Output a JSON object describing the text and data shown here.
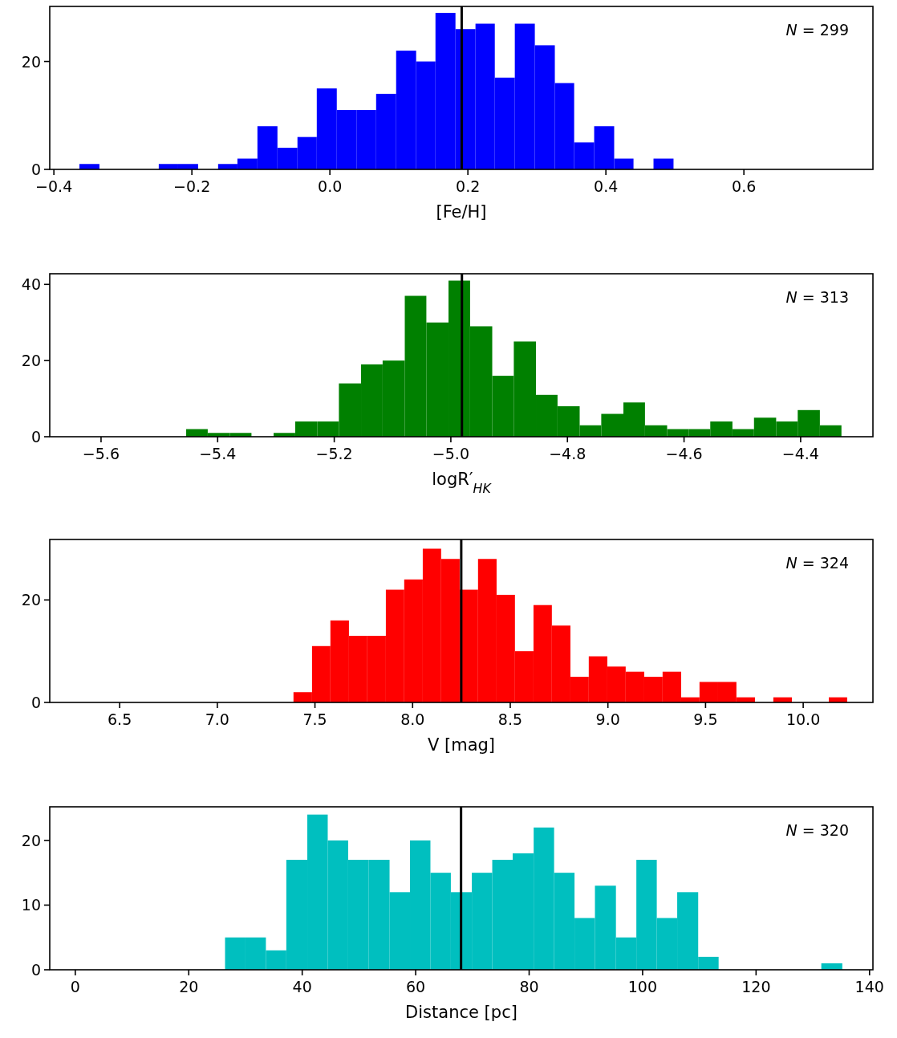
{
  "chart_data": [
    {
      "type": "histogram",
      "color": "#0000ff",
      "xlabel": "[Fe/H]",
      "annotations": [
        "N = 299"
      ],
      "bins": [
        -0.363,
        -0.334,
        -0.248,
        -0.22,
        -0.191,
        -0.162,
        -0.134,
        -0.105,
        -0.076,
        -0.047,
        -0.019,
        0.01,
        0.039,
        0.067,
        0.096,
        0.125,
        0.153,
        0.182,
        0.211,
        0.239,
        0.268,
        0.297,
        0.326,
        0.354,
        0.383,
        0.412,
        0.44,
        0.469,
        0.498
      ],
      "values": [
        1,
        0,
        1,
        1,
        0,
        1,
        2,
        8,
        4,
        6,
        15,
        11,
        11,
        14,
        22,
        20,
        29,
        26,
        27,
        17,
        27,
        23,
        16,
        5,
        8,
        2,
        0,
        2
      ],
      "xlim": [
        -0.406,
        0.787
      ],
      "ylim": [
        0,
        30.2
      ],
      "xticks": [
        {
          "value": -0.4,
          "label": "−0.4"
        },
        {
          "value": -0.2,
          "label": "−0.2"
        },
        {
          "value": 0,
          "label": "0.0"
        },
        {
          "value": 0.2,
          "label": "0.2"
        },
        {
          "value": 0.4,
          "label": "0.4"
        },
        {
          "value": 0.6,
          "label": "0.6"
        }
      ],
      "yticks": [
        0,
        20
      ],
      "ref_lines": [
        {
          "axis": "x",
          "value": 0.191,
          "color": "#000000"
        }
      ]
    },
    {
      "type": "histogram",
      "color": "#008000",
      "xlabel": "logR′$_{HK}$",
      "annotations": [
        "N = 313"
      ],
      "bins": [
        -5.454,
        -5.417,
        -5.379,
        -5.342,
        -5.304,
        -5.267,
        -5.229,
        -5.192,
        -5.154,
        -5.117,
        -5.079,
        -5.042,
        -5.004,
        -4.967,
        -4.929,
        -4.892,
        -4.854,
        -4.817,
        -4.779,
        -4.742,
        -4.704,
        -4.667,
        -4.629,
        -4.592,
        -4.555,
        -4.517,
        -4.48,
        -4.442,
        -4.405,
        -4.367,
        -4.33
      ],
      "values": [
        2,
        1,
        1,
        0,
        1,
        4,
        4,
        14,
        19,
        20,
        37,
        30,
        41,
        29,
        16,
        25,
        11,
        8,
        3,
        6,
        9,
        3,
        2,
        2,
        4,
        2,
        5,
        4,
        7,
        3
      ],
      "xlim": [
        -5.688,
        -4.276
      ],
      "ylim": [
        0,
        42.8
      ],
      "xticks": [
        {
          "value": -5.6,
          "label": "−5.6"
        },
        {
          "value": -5.4,
          "label": "−5.4"
        },
        {
          "value": -5.2,
          "label": "−5.2"
        },
        {
          "value": -5.0,
          "label": "−5.0"
        },
        {
          "value": -4.8,
          "label": "−4.8"
        },
        {
          "value": -4.6,
          "label": "−4.6"
        },
        {
          "value": -4.4,
          "label": "−4.4"
        }
      ],
      "yticks": [
        0,
        20,
        40
      ],
      "ref_lines": [
        {
          "axis": "x",
          "value": -4.981,
          "color": "#000000"
        }
      ]
    },
    {
      "type": "histogram",
      "color": "#ff0000",
      "xlabel": "V [mag]",
      "annotations": [
        "N = 324"
      ],
      "bins": [
        7.39,
        7.485,
        7.579,
        7.674,
        7.768,
        7.863,
        7.957,
        8.052,
        8.146,
        8.241,
        8.335,
        8.43,
        8.524,
        8.619,
        8.713,
        8.808,
        8.902,
        8.997,
        9.091,
        9.186,
        9.28,
        9.375,
        9.469,
        9.564,
        9.658,
        9.753,
        9.847,
        9.942,
        10.036,
        10.131,
        10.225
      ],
      "values": [
        2,
        11,
        16,
        13,
        13,
        22,
        24,
        30,
        28,
        22,
        28,
        21,
        10,
        19,
        15,
        5,
        9,
        7,
        6,
        5,
        6,
        1,
        4,
        4,
        1,
        0,
        1,
        0,
        0,
        1
      ],
      "xlim": [
        6.142,
        10.357
      ],
      "ylim": [
        0,
        31.8
      ],
      "xticks": [
        6.5,
        {
          "value": 7,
          "label": "7.0"
        },
        7.5,
        {
          "value": 8,
          "label": "8.0"
        },
        8.5,
        {
          "value": 9,
          "label": "9.0"
        },
        9.5,
        {
          "value": 10,
          "label": "10.0"
        }
      ],
      "yticks": [
        0,
        20
      ],
      "ref_lines": [
        {
          "axis": "x",
          "value": 8.249,
          "color": "#000000"
        }
      ]
    },
    {
      "type": "histogram",
      "color": "#00bfbf",
      "xlabel": "Distance [pc]",
      "annotations": [
        "N = 320"
      ],
      "bins": [
        26.4,
        30.0,
        33.6,
        37.2,
        40.9,
        44.5,
        48.1,
        51.7,
        55.4,
        59.0,
        62.6,
        66.2,
        69.9,
        73.5,
        77.1,
        80.8,
        84.4,
        88.0,
        91.6,
        95.3,
        98.9,
        102.5,
        106.1,
        109.8,
        113.4,
        131.5,
        135.2
      ],
      "values": [
        5,
        5,
        3,
        17,
        24,
        20,
        17,
        17,
        12,
        20,
        15,
        12,
        15,
        17,
        18,
        22,
        15,
        8,
        13,
        5,
        17,
        8,
        12,
        2,
        0,
        1
      ],
      "xlim": [
        -4.5,
        140.6
      ],
      "ylim": [
        0,
        25.2
      ],
      "xticks": [
        0,
        20,
        40,
        60,
        80,
        100,
        120,
        140
      ],
      "yticks": [
        0,
        10,
        20
      ],
      "ref_lines": [
        {
          "axis": "x",
          "value": 68.0,
          "color": "#000000"
        }
      ]
    }
  ]
}
